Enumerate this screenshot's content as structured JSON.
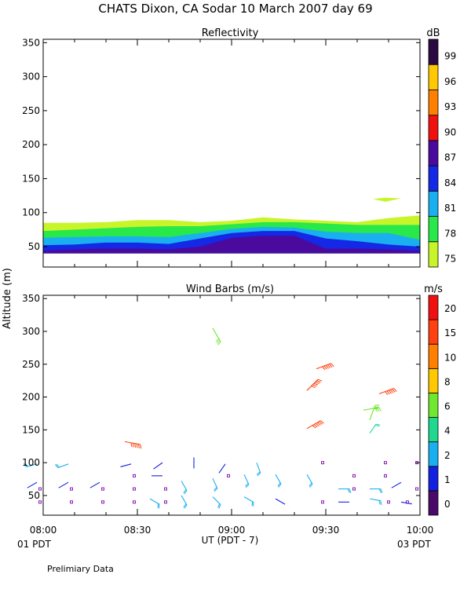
{
  "figure": {
    "title": "CHATS Dixon, CA   Sodar   10 March 2007   day  69",
    "altitude_label": "Altitude  (m)",
    "time_label": "UT  (PDT - 7)",
    "left_footer": "01 PDT",
    "right_footer": "03 PDT",
    "note": "Prelimiary Data"
  },
  "chart_data": [
    {
      "type": "area",
      "title": "Reflectivity",
      "ylim": [
        20,
        355
      ],
      "yticks": [
        50,
        100,
        150,
        200,
        250,
        300,
        350
      ],
      "xlim": [
        0,
        120
      ],
      "xticks": [
        {
          "value": 0,
          "label": "08:00"
        },
        {
          "value": 30,
          "label": "08:30"
        },
        {
          "value": 60,
          "label": "09:00"
        },
        {
          "value": 90,
          "label": "09:30"
        },
        {
          "value": 120,
          "label": "10:00"
        }
      ],
      "colorbar": {
        "unit": "dB",
        "levels": [
          75,
          78,
          81,
          84,
          87,
          90,
          93,
          96,
          99
        ],
        "colors": [
          "#c8f52a",
          "#28e84a",
          "#1ab0f0",
          "#1428e6",
          "#4a0a9e",
          "#f01010",
          "#ff8000",
          "#ffc800",
          "#2a0a40"
        ]
      },
      "layers": [
        {
          "level": 75,
          "top": [
            [
              0,
              85
            ],
            [
              10,
              85
            ],
            [
              20,
              86
            ],
            [
              30,
              89
            ],
            [
              40,
              89
            ],
            [
              50,
              86
            ],
            [
              60,
              88
            ],
            [
              70,
              93
            ],
            [
              80,
              90
            ],
            [
              90,
              88
            ],
            [
              100,
              86
            ],
            [
              110,
              92
            ],
            [
              120,
              96
            ]
          ]
        },
        {
          "level": 78,
          "top": [
            [
              0,
              73
            ],
            [
              10,
              75
            ],
            [
              20,
              77
            ],
            [
              30,
              79
            ],
            [
              40,
              80
            ],
            [
              50,
              80
            ],
            [
              60,
              83
            ],
            [
              70,
              86
            ],
            [
              80,
              86
            ],
            [
              90,
              84
            ],
            [
              100,
              82
            ],
            [
              110,
              82
            ],
            [
              120,
              82
            ]
          ]
        },
        {
          "level": 81,
          "top": [
            [
              0,
              63
            ],
            [
              10,
              64
            ],
            [
              20,
              65
            ],
            [
              30,
              65
            ],
            [
              40,
              64
            ],
            [
              50,
              70
            ],
            [
              60,
              76
            ],
            [
              70,
              79
            ],
            [
              80,
              78
            ],
            [
              90,
              72
            ],
            [
              100,
              70
            ],
            [
              110,
              70
            ],
            [
              120,
              60
            ]
          ]
        },
        {
          "level": 84,
          "top": [
            [
              0,
              52
            ],
            [
              10,
              53
            ],
            [
              20,
              56
            ],
            [
              30,
              56
            ],
            [
              40,
              54
            ],
            [
              50,
              62
            ],
            [
              60,
              70
            ],
            [
              70,
              73
            ],
            [
              80,
              73
            ],
            [
              90,
              62
            ],
            [
              100,
              58
            ],
            [
              110,
              53
            ],
            [
              120,
              50
            ]
          ]
        },
        {
          "level": 87,
          "top": [
            [
              0,
              44
            ],
            [
              10,
              46
            ],
            [
              20,
              47
            ],
            [
              30,
              47
            ],
            [
              40,
              46
            ],
            [
              50,
              50
            ],
            [
              60,
              63
            ],
            [
              70,
              66
            ],
            [
              80,
              66
            ],
            [
              90,
              47
            ],
            [
              100,
              47
            ],
            [
              110,
              46
            ],
            [
              120,
              44
            ]
          ]
        }
      ],
      "patches": [
        {
          "level": 75,
          "points": [
            [
              105,
              120
            ],
            [
              109,
              122
            ],
            [
              114,
              121
            ],
            [
              109,
              116
            ]
          ]
        }
      ]
    },
    {
      "type": "scatter",
      "title": "Wind Barbs (m/s)",
      "ylabel": "Altitude  (m)",
      "ylim": [
        20,
        355
      ],
      "yticks": [
        50,
        100,
        150,
        200,
        250,
        300,
        350
      ],
      "xlim": [
        0,
        120
      ],
      "xticks": [
        {
          "value": 0,
          "label": "08:00"
        },
        {
          "value": 30,
          "label": "08:30"
        },
        {
          "value": 60,
          "label": "09:00"
        },
        {
          "value": 90,
          "label": "09:30"
        },
        {
          "value": 120,
          "label": "10:00"
        }
      ],
      "colorbar": {
        "unit": "m/s",
        "levels": [
          0,
          1,
          2,
          4,
          6,
          8,
          10,
          15,
          20
        ],
        "colors": [
          "#4a0a6a",
          "#1420e0",
          "#1ab0f0",
          "#20d890",
          "#70e830",
          "#ffc800",
          "#ff8000",
          "#ff4010",
          "#f01010"
        ]
      },
      "calm_points": [
        [
          -1,
          40
        ],
        [
          -1,
          60
        ],
        [
          9,
          40
        ],
        [
          9,
          60
        ],
        [
          19,
          40
        ],
        [
          19,
          60
        ],
        [
          29,
          40
        ],
        [
          29,
          60
        ],
        [
          29,
          80
        ],
        [
          39,
          40
        ],
        [
          39,
          60
        ],
        [
          59,
          80
        ],
        [
          89,
          40
        ],
        [
          89,
          100
        ],
        [
          99,
          60
        ],
        [
          99,
          80
        ],
        [
          109,
          80
        ],
        [
          109,
          100
        ],
        [
          110,
          40
        ],
        [
          116,
          40
        ],
        [
          119,
          100
        ],
        [
          119,
          60
        ]
      ],
      "barbs": [
        {
          "x": -2,
          "y": 70,
          "angle": 240,
          "speed": 1
        },
        {
          "x": 8,
          "y": 70,
          "angle": 240,
          "speed": 1
        },
        {
          "x": 18,
          "y": 70,
          "angle": 240,
          "speed": 1
        },
        {
          "x": -2,
          "y": 98,
          "angle": 255,
          "speed": 2
        },
        {
          "x": 8,
          "y": 98,
          "angle": 250,
          "speed": 2
        },
        {
          "x": 28,
          "y": 98,
          "angle": 255,
          "speed": 1
        },
        {
          "x": 38,
          "y": 100,
          "angle": 235,
          "speed": 1
        },
        {
          "x": 48,
          "y": 108,
          "angle": 180,
          "speed": 1
        },
        {
          "x": 58,
          "y": 98,
          "angle": 215,
          "speed": 1
        },
        {
          "x": 68,
          "y": 100,
          "angle": 160,
          "speed": 2
        },
        {
          "x": 38,
          "y": 80,
          "angle": 270,
          "speed": 1
        },
        {
          "x": 44,
          "y": 72,
          "angle": 150,
          "speed": 2
        },
        {
          "x": 54,
          "y": 76,
          "angle": 155,
          "speed": 3
        },
        {
          "x": 64,
          "y": 82,
          "angle": 155,
          "speed": 3
        },
        {
          "x": 74,
          "y": 82,
          "angle": 150,
          "speed": 3
        },
        {
          "x": 84,
          "y": 82,
          "angle": 150,
          "speed": 3
        },
        {
          "x": 94,
          "y": 60,
          "angle": 90,
          "speed": 2
        },
        {
          "x": 104,
          "y": 60,
          "angle": 90,
          "speed": 2
        },
        {
          "x": 114,
          "y": 70,
          "angle": 240,
          "speed": 1
        },
        {
          "x": 34,
          "y": 45,
          "angle": 120,
          "speed": 2
        },
        {
          "x": 44,
          "y": 50,
          "angle": 150,
          "speed": 2
        },
        {
          "x": 54,
          "y": 48,
          "angle": 135,
          "speed": 2
        },
        {
          "x": 64,
          "y": 48,
          "angle": 120,
          "speed": 2
        },
        {
          "x": 74,
          "y": 45,
          "angle": 120,
          "speed": 1
        },
        {
          "x": 94,
          "y": 40,
          "angle": 90,
          "speed": 1
        },
        {
          "x": 104,
          "y": 45,
          "angle": 100,
          "speed": 2
        },
        {
          "x": 114,
          "y": 40,
          "angle": 100,
          "speed": 1
        },
        {
          "x": 54,
          "y": 305,
          "angle": 150,
          "speed": 6
        },
        {
          "x": 26,
          "y": 132,
          "angle": 100,
          "speed": 15
        },
        {
          "x": 84,
          "y": 152,
          "angle": 60,
          "speed": 15
        },
        {
          "x": 84,
          "y": 210,
          "angle": 45,
          "speed": 15
        },
        {
          "x": 87,
          "y": 243,
          "angle": 70,
          "speed": 15
        },
        {
          "x": 107,
          "y": 205,
          "angle": 70,
          "speed": 15
        },
        {
          "x": 102,
          "y": 180,
          "angle": 80,
          "speed": 6
        },
        {
          "x": 104,
          "y": 165,
          "angle": 20,
          "speed": 6
        },
        {
          "x": 104,
          "y": 145,
          "angle": 35,
          "speed": 4
        }
      ]
    }
  ]
}
